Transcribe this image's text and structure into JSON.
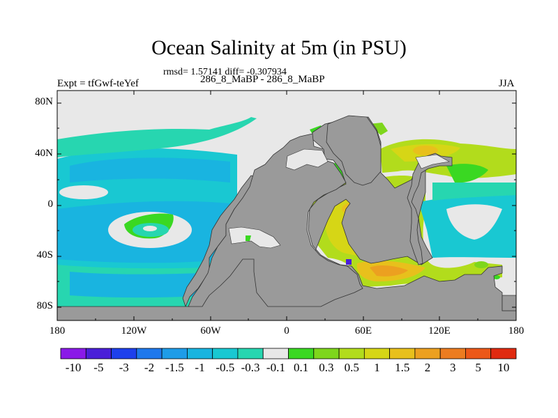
{
  "title": "Ocean Salinity at 5m (in PSU)",
  "subtitle": "rmsd= 1.57141 diff= -0.307934",
  "left_string": "Expt = tfGwf-teYef",
  "center_string": "286_8_MaBP - 286_8_MaBP",
  "right_string": "JJA",
  "map": {
    "y_ticks": [
      "80N",
      "40N",
      "0",
      "40S",
      "80S"
    ],
    "x_ticks": [
      "180",
      "120W",
      "60W",
      "0",
      "60E",
      "120E",
      "180"
    ],
    "land_color": "#9a9a9a",
    "missing_color": "#e8e8e8"
  },
  "colorbar": {
    "labels": [
      "-10",
      "-5",
      "-3",
      "-2",
      "-1.5",
      "-1",
      "-0.5",
      "-0.3",
      "-0.1",
      "0.1",
      "0.3",
      "0.5",
      "1",
      "1.5",
      "2",
      "3",
      "5",
      "10"
    ],
    "colors": [
      "#8a19e8",
      "#4a1fd8",
      "#1e40ec",
      "#1e78ec",
      "#1e9ce8",
      "#19b4e0",
      "#19c8d2",
      "#27d6b0",
      "#e8e8e8",
      "#3ad822",
      "#7ed61c",
      "#b2dc1c",
      "#d6d616",
      "#e8c01c",
      "#eca020",
      "#ec7c20",
      "#ec5818",
      "#e02a10"
    ]
  }
}
